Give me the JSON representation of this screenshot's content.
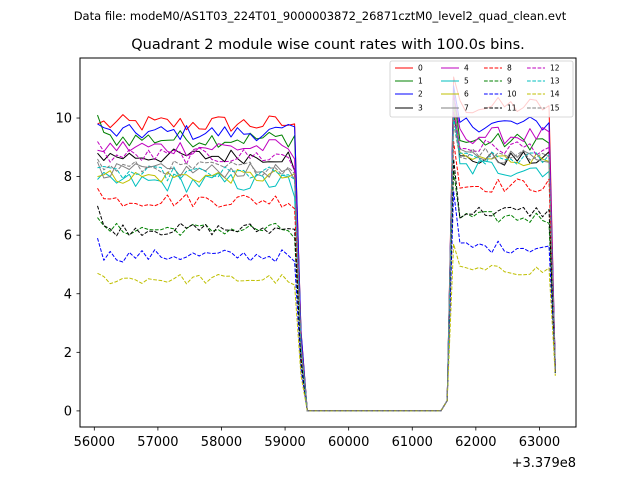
{
  "suptitle": "Data file: modeM0/AS1T03_224T01_9000003872_26871cztM0_level2_quad_clean.evt",
  "chart_data": {
    "type": "line",
    "title": "Quadrant 2 module wise count rates with 100.0s bins.",
    "xlabel": "",
    "ylabel": "",
    "x_offset_label": "+3.379e8",
    "xlim": [
      55775,
      63575
    ],
    "ylim": [
      -0.55,
      12.05
    ],
    "xticks": [
      56000,
      57000,
      58000,
      59000,
      60000,
      61000,
      62000,
      63000
    ],
    "xtick_labels": [
      "56000",
      "57000",
      "58000",
      "59000",
      "60000",
      "61000",
      "62000",
      "63000"
    ],
    "yticks": [
      0,
      2,
      4,
      6,
      8,
      10
    ],
    "ytick_labels": [
      "0",
      "2",
      "4",
      "6",
      "8",
      "10"
    ],
    "grid": false,
    "legend_position": "top-right",
    "legend_columns": 4,
    "gap_segment": {
      "x_start": 59350,
      "x_end": 61450,
      "value": 0.0
    },
    "series": [
      {
        "name": "0",
        "color": "#ff0000",
        "dash": "solid",
        "level1": 9.8,
        "level2": 10.4,
        "start": 9.8,
        "drop_end": 9.8,
        "spike": 11.4,
        "final": 1.4,
        "noise": 0.32
      },
      {
        "name": "1",
        "color": "#008000",
        "dash": "solid",
        "level1": 9.3,
        "level2": 9.2,
        "start": 10.1,
        "drop_end": 9.4,
        "spike": 10.9,
        "final": 1.3,
        "noise": 0.3
      },
      {
        "name": "2",
        "color": "#0000ff",
        "dash": "solid",
        "level1": 9.5,
        "level2": 9.8,
        "start": 9.8,
        "drop_end": 9.7,
        "spike": 11.1,
        "final": 1.5,
        "noise": 0.28
      },
      {
        "name": "3",
        "color": "#000000",
        "dash": "solid",
        "level1": 8.7,
        "level2": 8.6,
        "start": 8.8,
        "drop_end": 8.2,
        "spike": 10.2,
        "final": 1.5,
        "noise": 0.26
      },
      {
        "name": "4",
        "color": "#bf00bf",
        "dash": "solid",
        "level1": 9.0,
        "level2": 9.4,
        "start": 8.9,
        "drop_end": 8.6,
        "spike": 10.8,
        "final": 1.4,
        "noise": 0.3
      },
      {
        "name": "5",
        "color": "#00bfbf",
        "dash": "solid",
        "level1": 7.8,
        "level2": 8.3,
        "start": 7.9,
        "drop_end": 7.3,
        "spike": 10.6,
        "final": 1.3,
        "noise": 0.35
      },
      {
        "name": "6",
        "color": "#bfbf00",
        "dash": "solid",
        "level1": 8.0,
        "level2": 8.6,
        "start": 8.0,
        "drop_end": 8.1,
        "spike": 10.4,
        "final": 1.3,
        "noise": 0.25
      },
      {
        "name": "7",
        "color": "#808080",
        "dash": "solid",
        "level1": 8.2,
        "level2": 8.7,
        "start": 8.5,
        "drop_end": 7.9,
        "spike": 10.6,
        "final": 1.4,
        "noise": 0.25
      },
      {
        "name": "8",
        "color": "#ff0000",
        "dash": "dashed",
        "level1": 7.2,
        "level2": 7.7,
        "start": 7.6,
        "drop_end": 6.9,
        "spike": 9.2,
        "final": 1.3,
        "noise": 0.25
      },
      {
        "name": "9",
        "color": "#008000",
        "dash": "dashed",
        "level1": 6.2,
        "level2": 6.6,
        "start": 6.6,
        "drop_end": 5.9,
        "spike": 8.2,
        "final": 1.3,
        "noise": 0.22
      },
      {
        "name": "10",
        "color": "#0000ff",
        "dash": "dashed",
        "level1": 5.3,
        "level2": 5.6,
        "start": 5.9,
        "drop_end": 5.1,
        "spike": 7.5,
        "final": 1.3,
        "noise": 0.22
      },
      {
        "name": "11",
        "color": "#000000",
        "dash": "dashed",
        "level1": 6.2,
        "level2": 6.8,
        "start": 7.0,
        "drop_end": 6.2,
        "spike": 8.6,
        "final": 1.3,
        "noise": 0.22
      },
      {
        "name": "12",
        "color": "#bf00bf",
        "dash": "dashed",
        "level1": 8.7,
        "level2": 9.0,
        "start": 9.2,
        "drop_end": 8.2,
        "spike": 10.2,
        "final": 1.4,
        "noise": 0.28
      },
      {
        "name": "13",
        "color": "#00bfbf",
        "dash": "dashed",
        "level1": 8.1,
        "level2": 8.6,
        "start": 8.3,
        "drop_end": 7.9,
        "spike": 10.0,
        "final": 1.4,
        "noise": 0.25
      },
      {
        "name": "14",
        "color": "#bfbf00",
        "dash": "dashed",
        "level1": 4.5,
        "level2": 4.8,
        "start": 4.7,
        "drop_end": 4.3,
        "spike": 5.7,
        "final": 1.2,
        "noise": 0.18
      },
      {
        "name": "15",
        "color": "#808080",
        "dash": "dashed",
        "level1": 8.3,
        "level2": 8.8,
        "start": 8.6,
        "drop_end": 8.1,
        "spike": 9.8,
        "final": 1.4,
        "noise": 0.25
      }
    ]
  }
}
